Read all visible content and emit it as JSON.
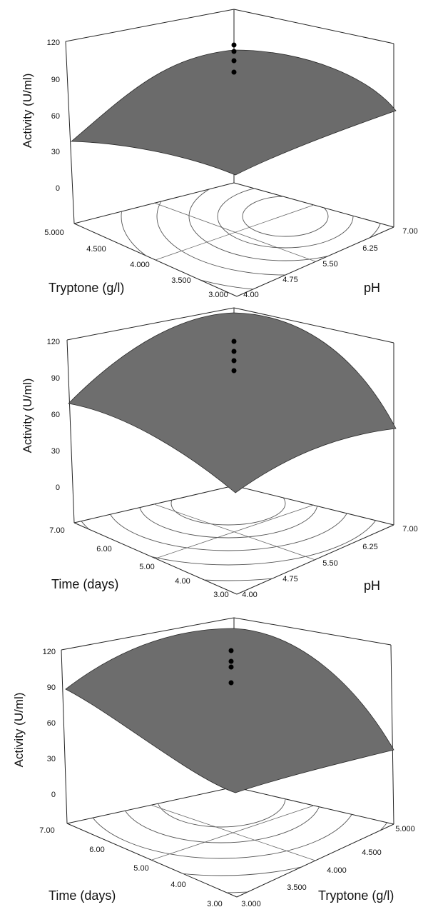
{
  "chart_data": [
    {
      "type": "surface",
      "zlabel": "Activity (U/ml)",
      "z_ticks": [
        "0",
        "30",
        "60",
        "90",
        "120"
      ],
      "zlim": [
        0,
        120
      ],
      "left_axis": {
        "label": "Tryptone (g/l)",
        "ticks": [
          "5.000",
          "4.500",
          "4.000",
          "3.500",
          "3.000"
        ],
        "range": [
          3.0,
          5.0
        ]
      },
      "right_axis": {
        "label": "pH",
        "ticks": [
          "4.00",
          "4.75",
          "5.50",
          "6.25",
          "7.00"
        ],
        "range": [
          4.0,
          7.0
        ]
      },
      "surface_corners": {
        "left_far": 35,
        "front": 4,
        "right_far": 67,
        "back": 80
      },
      "surface_peak": 118,
      "design_points": [
        118,
        113,
        108,
        102
      ],
      "contour_levels": 5
    },
    {
      "type": "surface",
      "zlabel": "Activity (U/ml)",
      "z_ticks": [
        "0",
        "30",
        "60",
        "90",
        "120"
      ],
      "zlim": [
        0,
        120
      ],
      "left_axis": {
        "label": "Time (days)",
        "ticks": [
          "7.00",
          "6.00",
          "5.00",
          "4.00",
          "3.00"
        ],
        "range": [
          3.0,
          7.0
        ]
      },
      "right_axis": {
        "label": "pH",
        "ticks": [
          "4.00",
          "4.75",
          "5.50",
          "6.25",
          "7.00"
        ],
        "range": [
          4.0,
          7.0
        ]
      },
      "surface_corners": {
        "left_far": 67,
        "front": -3,
        "right_far": 47,
        "back": 78
      },
      "surface_peak": 123,
      "design_points": [
        117,
        112,
        103,
        98
      ],
      "contour_levels": 6
    },
    {
      "type": "surface",
      "zlabel": "Activity (U/ml)",
      "z_ticks": [
        "0",
        "30",
        "60",
        "90",
        "120"
      ],
      "zlim": [
        0,
        120
      ],
      "left_axis": {
        "label": "Time (days)",
        "ticks": [
          "7.00",
          "6.00",
          "5.00",
          "4.00",
          "3.00"
        ],
        "range": [
          3.0,
          7.0
        ]
      },
      "right_axis": {
        "label": "Tryptone (g/l)",
        "ticks": [
          "3.000",
          "3.500",
          "4.000",
          "4.500",
          "5.000"
        ],
        "range": [
          3.0,
          5.0
        ]
      },
      "surface_corners": {
        "left_far": 88,
        "front": 2,
        "right_far": 25,
        "back": 92
      },
      "surface_peak": 120,
      "design_points": [
        120,
        114,
        110,
        97
      ],
      "contour_levels": 5
    }
  ]
}
